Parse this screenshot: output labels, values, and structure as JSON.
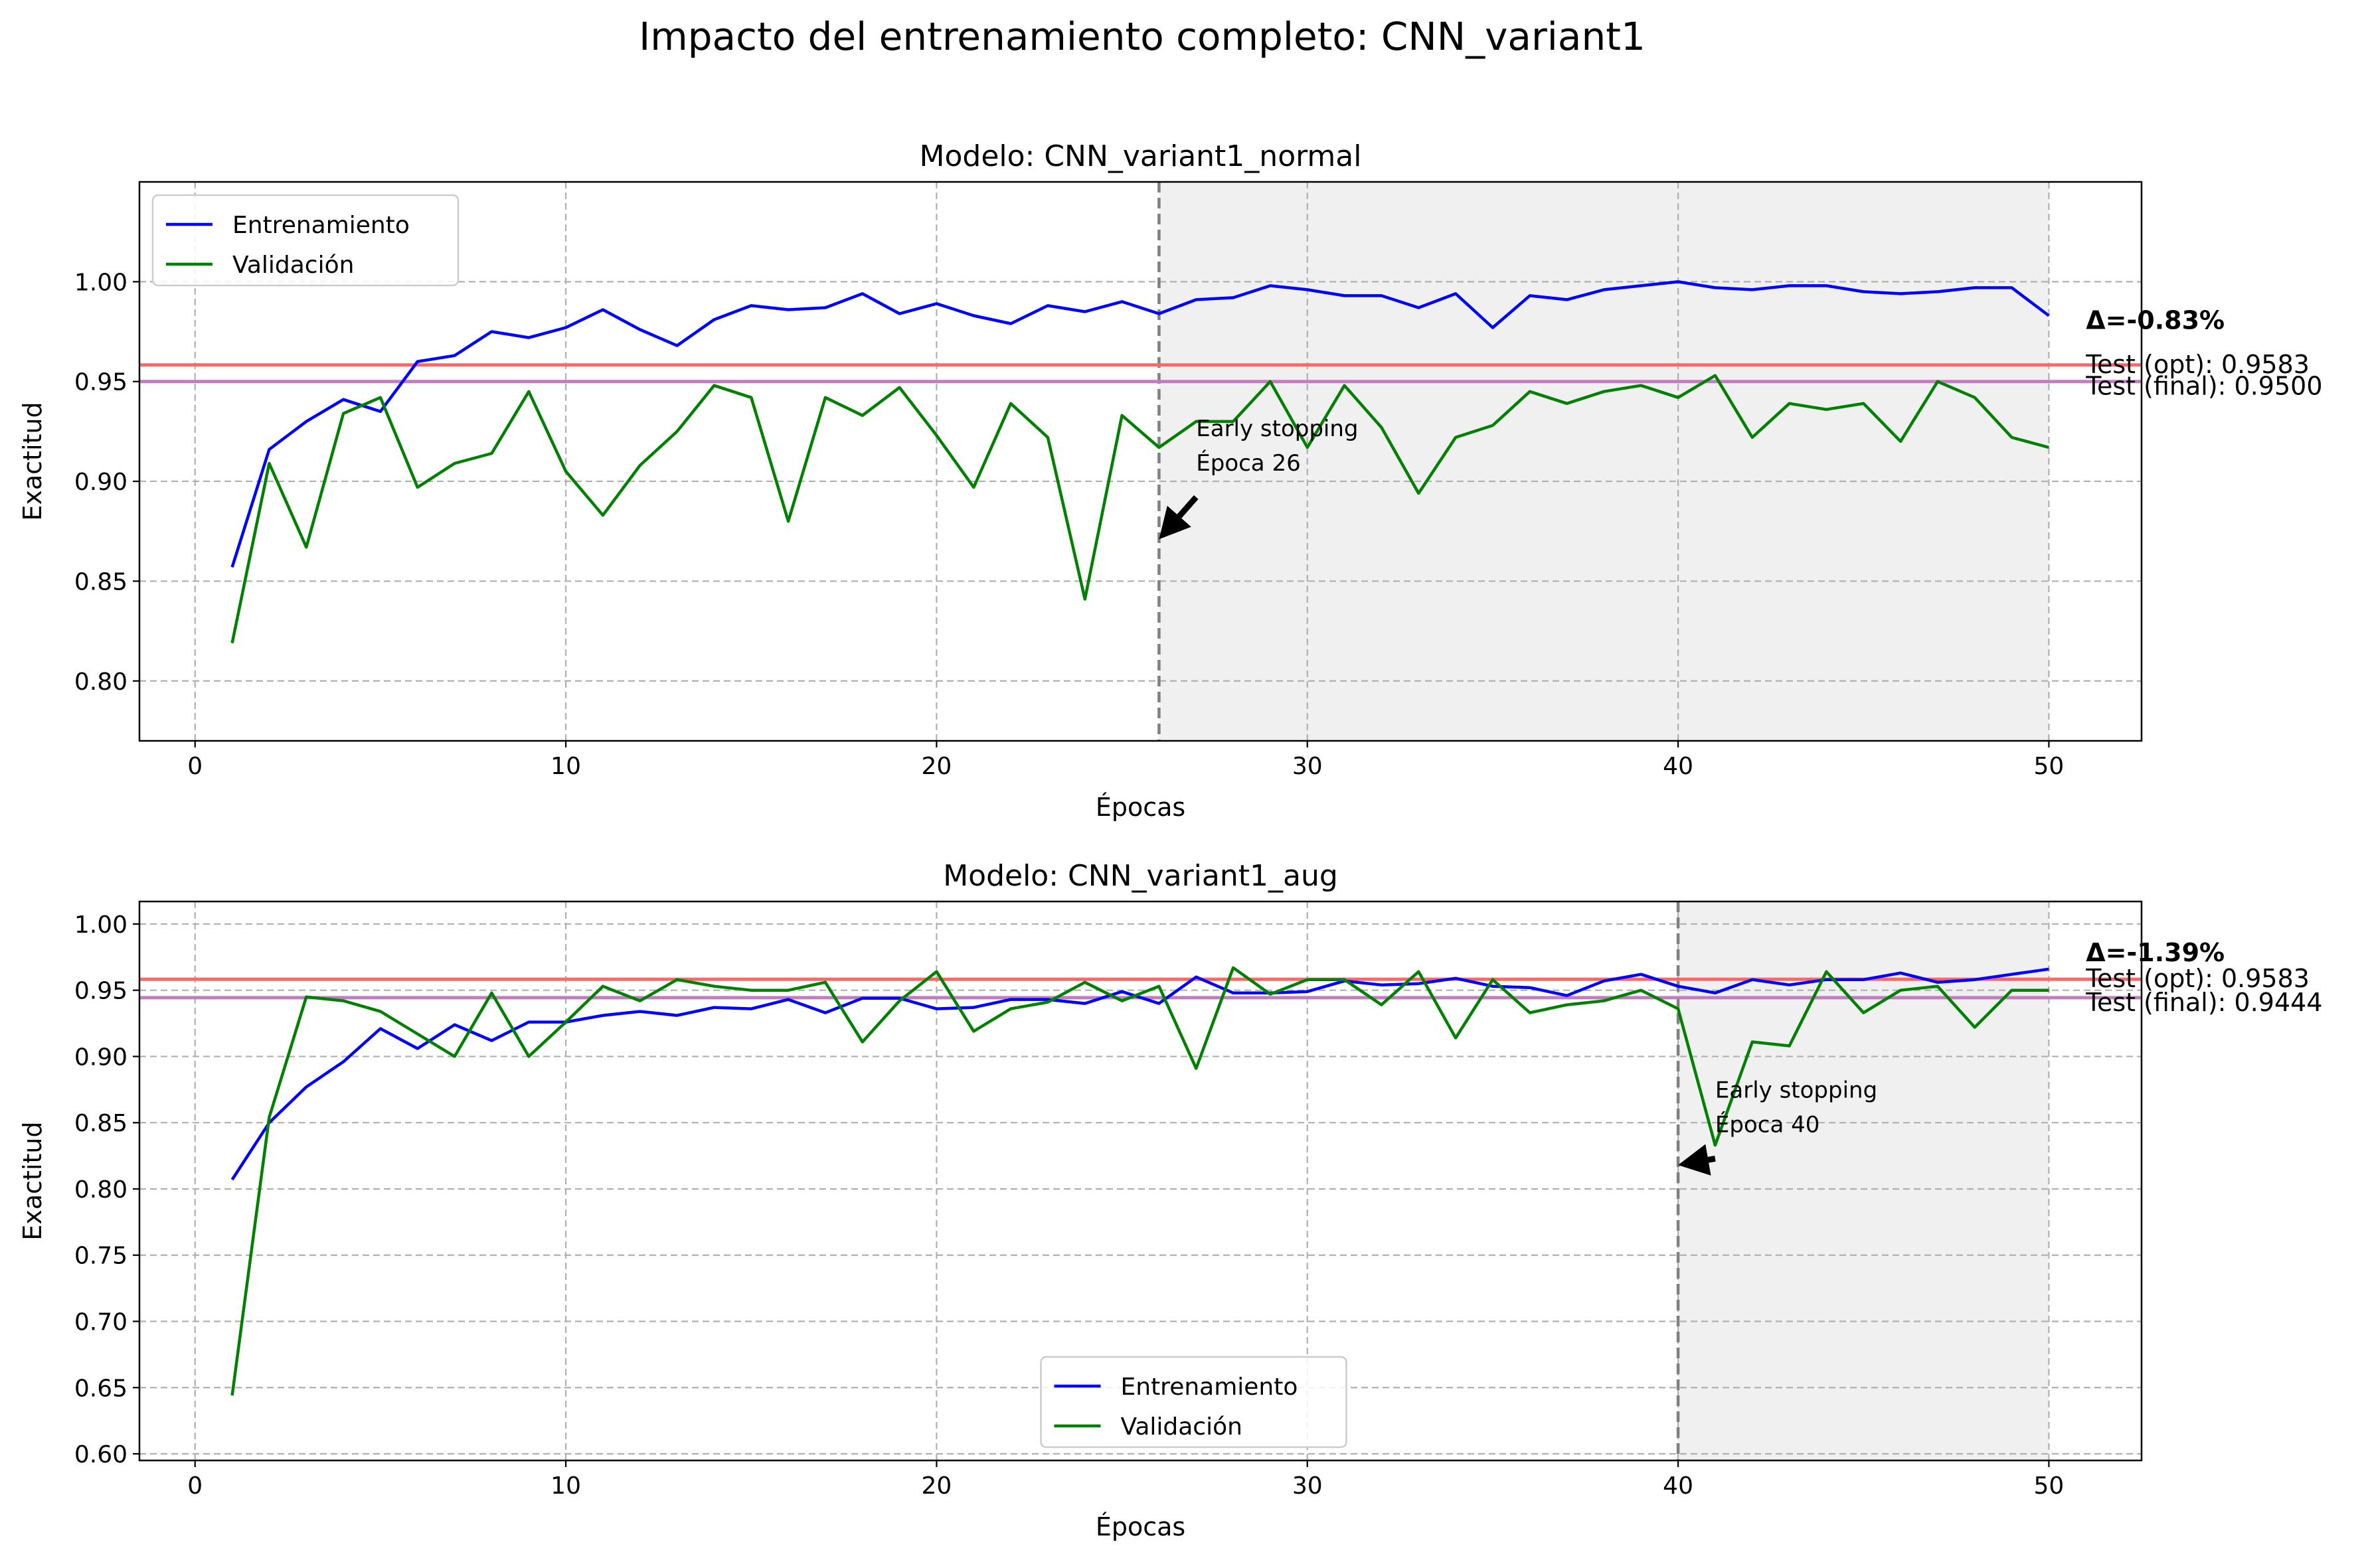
{
  "figure_title": "Impacto del entrenamiento completo: CNN_variant1",
  "colors": {
    "train": "#0000ff",
    "val": "#008000",
    "test_opt": "#ff6666",
    "test_final": "#bf7fbf",
    "delta": "#ff0000",
    "final_text": "#800080",
    "shade": "#f0f0f0"
  },
  "chart_data": [
    {
      "type": "line",
      "title": "Modelo: CNN_variant1_normal",
      "xlabel": "Épocas",
      "ylabel": "Exactitud",
      "xlim": [
        -1.5,
        52.5
      ],
      "ylim": [
        0.77,
        1.05
      ],
      "xticks": [
        0,
        10,
        20,
        30,
        40,
        50
      ],
      "yticks": [
        0.8,
        0.85,
        0.9,
        0.95,
        1.0
      ],
      "ytick_labels": [
        "0.80",
        "0.85",
        "0.90",
        "0.95",
        "1.00"
      ],
      "grid": true,
      "legend_position": "upper-left",
      "x": [
        1,
        2,
        3,
        4,
        5,
        6,
        7,
        8,
        9,
        10,
        11,
        12,
        13,
        14,
        15,
        16,
        17,
        18,
        19,
        20,
        21,
        22,
        23,
        24,
        25,
        26,
        27,
        28,
        29,
        30,
        31,
        32,
        33,
        34,
        35,
        36,
        37,
        38,
        39,
        40,
        41,
        42,
        43,
        44,
        45,
        46,
        47,
        48,
        49,
        50
      ],
      "series": [
        {
          "name": "Entrenamiento",
          "values": [
            0.857,
            0.916,
            0.93,
            0.941,
            0.935,
            0.96,
            0.963,
            0.975,
            0.972,
            0.977,
            0.986,
            0.976,
            0.968,
            0.981,
            0.988,
            0.986,
            0.987,
            0.994,
            0.984,
            0.989,
            0.983,
            0.979,
            0.988,
            0.985,
            0.99,
            0.984,
            0.991,
            0.992,
            0.998,
            0.996,
            0.993,
            0.993,
            0.987,
            0.994,
            0.977,
            0.993,
            0.991,
            0.996,
            0.998,
            1.0,
            0.997,
            0.996,
            0.998,
            0.998,
            0.995,
            0.994,
            0.995,
            0.997,
            0.997,
            0.983
          ]
        },
        {
          "name": "Validación",
          "values": [
            0.819,
            0.909,
            0.867,
            0.934,
            0.942,
            0.897,
            0.909,
            0.914,
            0.945,
            0.905,
            0.883,
            0.908,
            0.925,
            0.948,
            0.942,
            0.88,
            0.942,
            0.933,
            0.947,
            0.923,
            0.897,
            0.939,
            0.922,
            0.841,
            0.933,
            0.917,
            0.93,
            0.93,
            0.95,
            0.917,
            0.948,
            0.927,
            0.894,
            0.922,
            0.928,
            0.945,
            0.939,
            0.945,
            0.948,
            0.942,
            0.953,
            0.922,
            0.939,
            0.936,
            0.939,
            0.92,
            0.95,
            0.942,
            0.922,
            0.917
          ]
        }
      ],
      "test_opt": 0.9583,
      "test_final": 0.95,
      "early_stop_epoch": 26,
      "shade_range": [
        26,
        50
      ],
      "annotation": {
        "line1": "Early stopping",
        "line2": "Época 26",
        "text_xy": [
          27,
          0.922
        ],
        "arrow_xy": [
          26,
          0.871
        ]
      },
      "delta_label": "Δ=-0.83%",
      "delta_y": 0.981,
      "test_opt_label": "Test (opt): 0.9583",
      "test_final_label": "Test (final): 0.9500"
    },
    {
      "type": "line",
      "title": "Modelo: CNN_variant1_aug",
      "xlabel": "Épocas",
      "ylabel": "Exactitud",
      "xlim": [
        -1.5,
        52.5
      ],
      "ylim": [
        0.595,
        1.017
      ],
      "xticks": [
        0,
        10,
        20,
        30,
        40,
        50
      ],
      "yticks": [
        0.6,
        0.65,
        0.7,
        0.75,
        0.8,
        0.85,
        0.9,
        0.95,
        1.0
      ],
      "ytick_labels": [
        "0.60",
        "0.65",
        "0.70",
        "0.75",
        "0.80",
        "0.85",
        "0.90",
        "0.95",
        "1.00"
      ],
      "grid": true,
      "legend_position": "lower-center",
      "x": [
        1,
        2,
        3,
        4,
        5,
        6,
        7,
        8,
        9,
        10,
        11,
        12,
        13,
        14,
        15,
        16,
        17,
        18,
        19,
        20,
        21,
        22,
        23,
        24,
        25,
        26,
        27,
        28,
        29,
        30,
        31,
        32,
        33,
        34,
        35,
        36,
        37,
        38,
        39,
        40,
        41,
        42,
        43,
        44,
        45,
        46,
        47,
        48,
        49,
        50
      ],
      "series": [
        {
          "name": "Entrenamiento",
          "values": [
            0.807,
            0.85,
            0.877,
            0.896,
            0.921,
            0.906,
            0.924,
            0.912,
            0.926,
            0.926,
            0.931,
            0.934,
            0.931,
            0.937,
            0.936,
            0.943,
            0.933,
            0.944,
            0.944,
            0.936,
            0.937,
            0.943,
            0.943,
            0.94,
            0.949,
            0.94,
            0.96,
            0.948,
            0.948,
            0.949,
            0.957,
            0.954,
            0.955,
            0.959,
            0.953,
            0.952,
            0.946,
            0.957,
            0.962,
            0.953,
            0.948,
            0.958,
            0.954,
            0.958,
            0.958,
            0.963,
            0.956,
            0.958,
            0.962,
            0.966
          ]
        },
        {
          "name": "Validación",
          "values": [
            0.644,
            0.854,
            0.945,
            0.942,
            0.934,
            0.917,
            0.9,
            0.948,
            0.9,
            0.926,
            0.953,
            0.942,
            0.958,
            0.953,
            0.95,
            0.95,
            0.956,
            0.911,
            0.942,
            0.964,
            0.919,
            0.936,
            0.941,
            0.956,
            0.942,
            0.953,
            0.891,
            0.967,
            0.947,
            0.958,
            0.958,
            0.939,
            0.964,
            0.914,
            0.958,
            0.933,
            0.939,
            0.942,
            0.95,
            0.936,
            0.833,
            0.911,
            0.908,
            0.964,
            0.933,
            0.95,
            0.953,
            0.922,
            0.95,
            0.95
          ]
        }
      ],
      "test_opt": 0.9583,
      "test_final": 0.9444,
      "early_stop_epoch": 40,
      "shade_range": [
        40,
        50
      ],
      "annotation": {
        "line1": "Early stopping",
        "line2": "Época 40",
        "text_xy": [
          41,
          0.868
        ],
        "arrow_xy": [
          40,
          0.818
        ]
      },
      "delta_label": "Δ=-1.39%",
      "delta_y": 0.979,
      "test_opt_label": "Test (opt): 0.9583",
      "test_final_label": "Test (final): 0.9444"
    }
  ]
}
